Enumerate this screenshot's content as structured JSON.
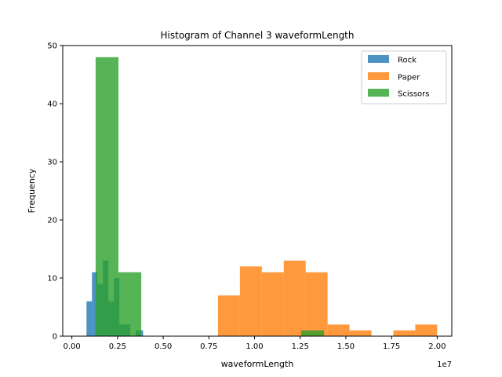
{
  "chart_data": {
    "type": "bar",
    "title": "Histogram of Channel 3 waveformLength",
    "xlabel": "waveformLength",
    "ylabel": "Frequency",
    "x_scale_label": "1e7",
    "xlim": [
      -0.05,
      2.08
    ],
    "ylim": [
      0,
      50
    ],
    "x_unit_multiplier": 10000000,
    "xticks": [
      0.0,
      0.25,
      0.5,
      0.75,
      1.0,
      1.25,
      1.5,
      1.75,
      2.0
    ],
    "xtick_labels": [
      "0.00",
      "0.25",
      "0.50",
      "0.75",
      "1.00",
      "1.25",
      "1.50",
      "1.75",
      "2.00"
    ],
    "yticks": [
      0,
      10,
      20,
      30,
      40,
      50
    ],
    "ytick_labels": [
      "0",
      "10",
      "20",
      "30",
      "40",
      "50"
    ],
    "grid": false,
    "legend_position": "top-right",
    "series": [
      {
        "name": "Rock",
        "color": "#1f77b4",
        "bins": [
          {
            "x0": 0.08,
            "x1": 0.11,
            "value": 6
          },
          {
            "x0": 0.11,
            "x1": 0.14,
            "value": 11
          },
          {
            "x0": 0.14,
            "x1": 0.17,
            "value": 9
          },
          {
            "x0": 0.17,
            "x1": 0.2,
            "value": 13
          },
          {
            "x0": 0.2,
            "x1": 0.23,
            "value": 6
          },
          {
            "x0": 0.23,
            "x1": 0.26,
            "value": 10
          },
          {
            "x0": 0.26,
            "x1": 0.29,
            "value": 2
          },
          {
            "x0": 0.29,
            "x1": 0.32,
            "value": 2
          },
          {
            "x0": 0.32,
            "x1": 0.35,
            "value": 0
          },
          {
            "x0": 0.35,
            "x1": 0.39,
            "value": 1
          }
        ]
      },
      {
        "name": "Paper",
        "color": "#ff7f0e",
        "bins": [
          {
            "x0": 0.8,
            "x1": 0.92,
            "value": 7
          },
          {
            "x0": 0.92,
            "x1": 1.04,
            "value": 12
          },
          {
            "x0": 1.04,
            "x1": 1.16,
            "value": 11
          },
          {
            "x0": 1.16,
            "x1": 1.28,
            "value": 13
          },
          {
            "x0": 1.28,
            "x1": 1.4,
            "value": 11
          },
          {
            "x0": 1.4,
            "x1": 1.52,
            "value": 2
          },
          {
            "x0": 1.52,
            "x1": 1.64,
            "value": 1
          },
          {
            "x0": 1.64,
            "x1": 1.76,
            "value": 0
          },
          {
            "x0": 1.76,
            "x1": 1.88,
            "value": 1
          },
          {
            "x0": 1.88,
            "x1": 2.0,
            "value": 2
          }
        ]
      },
      {
        "name": "Scissors",
        "color": "#2ca02c",
        "bins": [
          {
            "x0": 0.13,
            "x1": 0.255,
            "value": 48
          },
          {
            "x0": 0.255,
            "x1": 0.38,
            "value": 11
          },
          {
            "x0": 0.38,
            "x1": 0.505,
            "value": 0
          },
          {
            "x0": 0.505,
            "x1": 0.63,
            "value": 0
          },
          {
            "x0": 0.63,
            "x1": 0.755,
            "value": 0
          },
          {
            "x0": 0.755,
            "x1": 0.88,
            "value": 0
          },
          {
            "x0": 0.88,
            "x1": 1.005,
            "value": 0
          },
          {
            "x0": 1.005,
            "x1": 1.13,
            "value": 0
          },
          {
            "x0": 1.13,
            "x1": 1.255,
            "value": 0
          },
          {
            "x0": 1.255,
            "x1": 1.38,
            "value": 1
          }
        ]
      }
    ]
  }
}
